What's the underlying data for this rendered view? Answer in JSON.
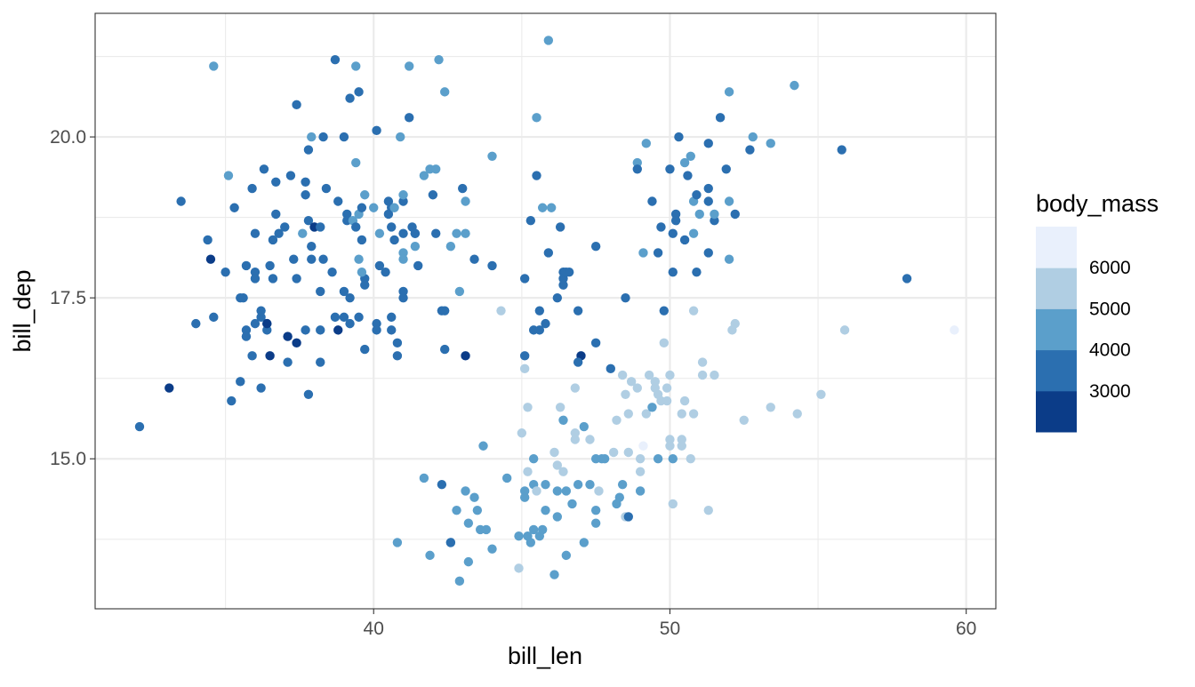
{
  "chart_data": {
    "type": "scatter",
    "title": "",
    "xlabel": "bill_len",
    "ylabel": "bill_dep",
    "xlim": [
      30.6,
      61.0
    ],
    "ylim": [
      12.67,
      21.92
    ],
    "x_ticks": [
      40,
      50,
      60
    ],
    "x_tick_labels": [
      "40",
      "50",
      "60"
    ],
    "y_ticks": [
      15,
      17.5,
      20
    ],
    "y_tick_labels": [
      "15.0",
      "17.5",
      "20.0"
    ],
    "grid": true,
    "theme": "bw",
    "legend": {
      "title": "body_mass",
      "placement": "right",
      "type": "binned",
      "breaks": [
        3000,
        4000,
        5000,
        6000
      ],
      "break_labels": [
        "3000",
        "4000",
        "5000",
        "6000"
      ],
      "bin_colors": [
        "#0B3C88",
        "#2B6FB0",
        "#5B9FCB",
        "#B0CEE3",
        "#E9F0FC"
      ]
    },
    "point_fields": [
      "bill_len",
      "bill_dep",
      "body_mass"
    ],
    "points": [
      [
        32.1,
        15.5,
        3500
      ],
      [
        33.1,
        16.1,
        2900
      ],
      [
        33.5,
        19.0,
        3500
      ],
      [
        34.0,
        17.1,
        3500
      ],
      [
        34.4,
        18.4,
        3500
      ],
      [
        34.5,
        18.1,
        2900
      ],
      [
        34.6,
        21.1,
        4500
      ],
      [
        34.6,
        17.2,
        3500
      ],
      [
        35.0,
        17.9,
        3500
      ],
      [
        35.1,
        19.4,
        4500
      ],
      [
        35.2,
        15.9,
        3500
      ],
      [
        35.3,
        18.9,
        3500
      ],
      [
        35.5,
        16.2,
        3500
      ],
      [
        35.5,
        17.5,
        3500
      ],
      [
        35.6,
        17.5,
        3500
      ],
      [
        35.7,
        18.0,
        3500
      ],
      [
        35.7,
        17.0,
        3500
      ],
      [
        35.7,
        16.9,
        3500
      ],
      [
        35.9,
        19.2,
        3500
      ],
      [
        35.9,
        16.6,
        3500
      ],
      [
        36.0,
        17.1,
        3500
      ],
      [
        36.0,
        17.9,
        3500
      ],
      [
        36.0,
        18.5,
        3500
      ],
      [
        36.0,
        17.8,
        3500
      ],
      [
        36.2,
        17.2,
        3500
      ],
      [
        36.2,
        17.3,
        3500
      ],
      [
        36.2,
        16.1,
        3500
      ],
      [
        36.3,
        19.5,
        3500
      ],
      [
        36.4,
        17.1,
        3500
      ],
      [
        36.4,
        17.0,
        3500
      ],
      [
        36.4,
        17.1,
        2900
      ],
      [
        36.5,
        18.0,
        3500
      ],
      [
        36.5,
        16.6,
        2900
      ],
      [
        36.6,
        18.4,
        3500
      ],
      [
        36.6,
        17.8,
        3500
      ],
      [
        36.7,
        19.3,
        3500
      ],
      [
        36.7,
        18.8,
        3500
      ],
      [
        36.8,
        18.5,
        3500
      ],
      [
        37.0,
        18.6,
        3500
      ],
      [
        37.1,
        16.9,
        2900
      ],
      [
        37.1,
        16.5,
        3500
      ],
      [
        37.2,
        19.4,
        3500
      ],
      [
        37.3,
        18.1,
        3500
      ],
      [
        37.4,
        20.5,
        3500
      ],
      [
        37.4,
        17.8,
        3500
      ],
      [
        37.4,
        16.8,
        2900
      ],
      [
        37.6,
        18.5,
        4500
      ],
      [
        37.7,
        19.3,
        3500
      ],
      [
        37.7,
        19.1,
        3500
      ],
      [
        37.7,
        17.0,
        3500
      ],
      [
        37.8,
        16.0,
        3500
      ],
      [
        37.8,
        19.8,
        3500
      ],
      [
        37.8,
        18.7,
        3500
      ],
      [
        37.9,
        20.0,
        4500
      ],
      [
        37.9,
        18.3,
        3500
      ],
      [
        37.9,
        18.1,
        3500
      ],
      [
        38.0,
        18.6,
        3500
      ],
      [
        38.0,
        18.6,
        2900
      ],
      [
        38.2,
        18.6,
        3500
      ],
      [
        38.2,
        17.6,
        3500
      ],
      [
        38.2,
        17.0,
        3500
      ],
      [
        38.2,
        16.5,
        3500
      ],
      [
        38.3,
        18.1,
        3500
      ],
      [
        38.3,
        20.0,
        3500
      ],
      [
        38.4,
        19.2,
        3500
      ],
      [
        38.6,
        17.9,
        3500
      ],
      [
        38.7,
        21.2,
        3500
      ],
      [
        38.7,
        17.2,
        3500
      ],
      [
        38.8,
        17.0,
        2900
      ],
      [
        38.8,
        19.0,
        3500
      ],
      [
        39.0,
        20.0,
        3500
      ],
      [
        39.0,
        17.6,
        3500
      ],
      [
        39.0,
        17.2,
        3500
      ],
      [
        39.1,
        18.8,
        3500
      ],
      [
        39.1,
        18.7,
        3500
      ],
      [
        39.2,
        17.1,
        3500
      ],
      [
        39.2,
        17.5,
        3500
      ],
      [
        39.3,
        18.7,
        4500
      ],
      [
        39.4,
        21.1,
        4500
      ],
      [
        39.4,
        19.6,
        4500
      ],
      [
        39.4,
        18.6,
        3500
      ],
      [
        39.2,
        20.6,
        3500
      ],
      [
        39.7,
        17.8,
        3500
      ],
      [
        39.7,
        16.7,
        3500
      ],
      [
        39.7,
        17.7,
        3500
      ],
      [
        39.5,
        20.7,
        3500
      ],
      [
        39.5,
        18.8,
        4500
      ],
      [
        39.5,
        18.1,
        4500
      ],
      [
        39.6,
        17.9,
        4500
      ],
      [
        39.5,
        17.2,
        3500
      ],
      [
        39.6,
        18.9,
        3500
      ],
      [
        39.6,
        18.4,
        3500
      ],
      [
        39.7,
        19.1,
        4500
      ],
      [
        40.0,
        18.9,
        4500
      ],
      [
        40.1,
        17.1,
        3500
      ],
      [
        40.1,
        17.0,
        3500
      ],
      [
        40.1,
        20.1,
        3500
      ],
      [
        40.2,
        18.0,
        3500
      ],
      [
        40.2,
        18.5,
        4500
      ],
      [
        40.4,
        17.9,
        3500
      ],
      [
        40.5,
        19.0,
        3500
      ],
      [
        40.5,
        18.8,
        3500
      ],
      [
        40.6,
        17.2,
        3500
      ],
      [
        40.6,
        17.0,
        3500
      ],
      [
        40.6,
        18.9,
        3500
      ],
      [
        40.6,
        18.6,
        3500
      ],
      [
        40.7,
        18.4,
        3500
      ],
      [
        40.7,
        18.9,
        4500
      ],
      [
        40.8,
        16.8,
        3500
      ],
      [
        40.8,
        16.6,
        3500
      ],
      [
        40.9,
        20.0,
        4500
      ],
      [
        41.0,
        19.0,
        3500
      ],
      [
        41.0,
        18.5,
        3500
      ],
      [
        41.0,
        19.1,
        4500
      ],
      [
        41.0,
        18.2,
        4500
      ],
      [
        41.0,
        18.1,
        4500
      ],
      [
        41.0,
        17.6,
        3500
      ],
      [
        41.0,
        17.5,
        3500
      ],
      [
        41.2,
        20.3,
        3500
      ],
      [
        41.2,
        21.1,
        4500
      ],
      [
        41.3,
        18.6,
        3500
      ],
      [
        41.4,
        18.5,
        3500
      ],
      [
        41.4,
        18.3,
        4500
      ],
      [
        41.4,
        18.5,
        3500
      ],
      [
        41.5,
        18.0,
        3500
      ],
      [
        41.7,
        14.7,
        4500
      ],
      [
        41.7,
        19.4,
        4500
      ],
      [
        41.9,
        19.5,
        4500
      ],
      [
        42.0,
        19.1,
        3500
      ],
      [
        42.1,
        19.5,
        4500
      ],
      [
        42.1,
        18.5,
        3500
      ],
      [
        42.4,
        20.7,
        4500
      ],
      [
        42.2,
        21.2,
        4500
      ],
      [
        42.3,
        17.3,
        3500
      ],
      [
        42.4,
        17.3,
        3500
      ],
      [
        42.4,
        16.7,
        3500
      ],
      [
        42.6,
        18.3,
        4500
      ],
      [
        42.8,
        18.5,
        4500
      ],
      [
        42.9,
        17.6,
        4500
      ],
      [
        43.0,
        19.2,
        3500
      ],
      [
        43.1,
        19.0,
        4500
      ],
      [
        43.1,
        18.5,
        4500
      ],
      [
        43.1,
        16.6,
        2900
      ],
      [
        43.4,
        18.1,
        3500
      ],
      [
        44.0,
        18.0,
        3500
      ],
      [
        44.0,
        19.7,
        4500
      ],
      [
        44.3,
        17.3,
        5500
      ],
      [
        45.5,
        20.3,
        4500
      ],
      [
        45.5,
        19.4,
        3500
      ],
      [
        45.3,
        18.7,
        3500
      ],
      [
        45.7,
        18.9,
        4500
      ],
      [
        46.0,
        18.9,
        4500
      ],
      [
        46.3,
        18.6,
        3500
      ],
      [
        45.9,
        18.2,
        3500
      ],
      [
        45.1,
        17.8,
        3500
      ],
      [
        45.6,
        17.3,
        3500
      ],
      [
        46.2,
        17.5,
        3500
      ],
      [
        46.4,
        17.8,
        3500
      ],
      [
        46.4,
        17.9,
        3500
      ],
      [
        46.5,
        17.9,
        3500
      ],
      [
        46.6,
        17.9,
        3500
      ],
      [
        46.4,
        17.7,
        3500
      ],
      [
        46.9,
        17.3,
        3500
      ],
      [
        47.5,
        18.3,
        3500
      ],
      [
        45.8,
        17.1,
        3500
      ],
      [
        45.4,
        17.0,
        3500
      ],
      [
        45.6,
        17.0,
        3500
      ],
      [
        45.1,
        16.6,
        3500
      ],
      [
        45.1,
        16.4,
        5500
      ],
      [
        47.0,
        16.6,
        2900
      ],
      [
        46.9,
        16.5,
        3500
      ],
      [
        47.5,
        16.8,
        3500
      ],
      [
        48.5,
        17.5,
        3500
      ],
      [
        45.9,
        21.5,
        4500
      ],
      [
        48.0,
        16.4,
        3500
      ],
      [
        43.7,
        15.2,
        4500
      ],
      [
        40.8,
        13.7,
        4500
      ],
      [
        41.9,
        13.5,
        4500
      ],
      [
        42.3,
        14.6,
        3500
      ],
      [
        42.6,
        13.7,
        4500
      ],
      [
        42.6,
        13.7,
        3500
      ],
      [
        42.8,
        14.2,
        4500
      ],
      [
        42.9,
        13.1,
        4500
      ],
      [
        43.1,
        14.5,
        4500
      ],
      [
        43.2,
        14.0,
        4500
      ],
      [
        43.2,
        13.4,
        4500
      ],
      [
        43.4,
        14.4,
        4500
      ],
      [
        43.5,
        14.2,
        4500
      ],
      [
        43.6,
        13.9,
        4500
      ],
      [
        43.8,
        13.9,
        4500
      ],
      [
        44.0,
        13.6,
        4500
      ],
      [
        44.5,
        14.7,
        4500
      ],
      [
        44.9,
        13.8,
        4500
      ],
      [
        44.9,
        13.3,
        5500
      ],
      [
        45.0,
        15.4,
        5500
      ],
      [
        45.1,
        14.5,
        4500
      ],
      [
        45.1,
        14.4,
        4500
      ],
      [
        45.2,
        14.8,
        5500
      ],
      [
        45.2,
        13.8,
        4500
      ],
      [
        45.2,
        15.8,
        5500
      ],
      [
        45.3,
        13.7,
        4500
      ],
      [
        45.4,
        14.6,
        4500
      ],
      [
        45.4,
        15.0,
        4500
      ],
      [
        45.4,
        13.9,
        4500
      ],
      [
        45.5,
        14.5,
        5500
      ],
      [
        45.6,
        13.8,
        4500
      ],
      [
        45.7,
        13.9,
        4500
      ],
      [
        45.8,
        14.6,
        4500
      ],
      [
        45.8,
        14.2,
        4500
      ],
      [
        46.1,
        13.2,
        4500
      ],
      [
        46.1,
        15.1,
        5500
      ],
      [
        46.2,
        14.9,
        5500
      ],
      [
        46.2,
        14.1,
        4500
      ],
      [
        46.2,
        14.5,
        4500
      ],
      [
        46.3,
        15.8,
        5500
      ],
      [
        46.4,
        15.6,
        4500
      ],
      [
        46.4,
        14.8,
        5500
      ],
      [
        46.5,
        13.5,
        4500
      ],
      [
        46.5,
        14.5,
        4500
      ],
      [
        46.7,
        14.3,
        4500
      ],
      [
        46.8,
        15.4,
        5500
      ],
      [
        46.8,
        16.1,
        5500
      ],
      [
        46.8,
        15.3,
        5500
      ],
      [
        46.9,
        14.6,
        4500
      ],
      [
        47.1,
        13.7,
        4500
      ],
      [
        47.1,
        15.5,
        4500
      ],
      [
        47.3,
        15.3,
        5500
      ],
      [
        47.3,
        14.6,
        4500
      ],
      [
        47.5,
        14.2,
        4500
      ],
      [
        47.5,
        14.0,
        4500
      ],
      [
        47.5,
        15.0,
        4500
      ],
      [
        47.6,
        14.5,
        5500
      ],
      [
        47.7,
        15.0,
        4500
      ],
      [
        47.8,
        15.0,
        4500
      ],
      [
        48.1,
        15.1,
        5500
      ],
      [
        48.2,
        15.6,
        5500
      ],
      [
        48.2,
        14.3,
        4500
      ],
      [
        48.3,
        14.4,
        4500
      ],
      [
        48.4,
        16.3,
        5500
      ],
      [
        48.4,
        14.6,
        4500
      ],
      [
        48.5,
        14.1,
        5500
      ],
      [
        48.6,
        14.1,
        3500
      ],
      [
        48.5,
        16.0,
        5500
      ],
      [
        48.6,
        15.7,
        5500
      ],
      [
        48.6,
        15.1,
        5500
      ],
      [
        48.7,
        16.2,
        5500
      ],
      [
        48.9,
        16.1,
        5500
      ],
      [
        49.0,
        14.8,
        5500
      ],
      [
        49.0,
        14.5,
        4500
      ],
      [
        49.0,
        15.0,
        5500
      ],
      [
        49.1,
        15.2,
        6200
      ],
      [
        49.2,
        15.7,
        5500
      ],
      [
        49.3,
        16.3,
        5500
      ],
      [
        49.4,
        15.8,
        4500
      ],
      [
        49.5,
        16.2,
        5500
      ],
      [
        49.5,
        16.1,
        5500
      ],
      [
        49.6,
        16.0,
        5500
      ],
      [
        49.6,
        15.0,
        4500
      ],
      [
        49.7,
        15.9,
        5500
      ],
      [
        49.9,
        16.1,
        5500
      ],
      [
        50.0,
        16.3,
        5500
      ],
      [
        50.0,
        15.3,
        5500
      ],
      [
        50.0,
        15.2,
        5500
      ],
      [
        49.9,
        15.9,
        5500
      ],
      [
        49.8,
        16.8,
        5500
      ],
      [
        50.1,
        15.0,
        4500
      ],
      [
        50.1,
        14.3,
        5500
      ],
      [
        50.4,
        15.7,
        5500
      ],
      [
        50.4,
        15.3,
        5500
      ],
      [
        50.5,
        15.9,
        5500
      ],
      [
        50.4,
        15.2,
        5500
      ],
      [
        50.7,
        15.0,
        5500
      ],
      [
        50.8,
        15.7,
        5500
      ],
      [
        50.8,
        17.3,
        5500
      ],
      [
        51.1,
        16.5,
        5500
      ],
      [
        51.1,
        16.3,
        5500
      ],
      [
        51.3,
        14.2,
        5500
      ],
      [
        51.5,
        16.3,
        5500
      ],
      [
        52.1,
        17.0,
        5500
      ],
      [
        52.2,
        17.1,
        5500
      ],
      [
        52.5,
        15.6,
        5500
      ],
      [
        53.4,
        15.8,
        5500
      ],
      [
        54.3,
        15.7,
        5500
      ],
      [
        55.1,
        16.0,
        5500
      ],
      [
        55.9,
        17.0,
        5500
      ],
      [
        59.6,
        17.0,
        6200
      ],
      [
        48.9,
        19.6,
        4500
      ],
      [
        48.9,
        19.5,
        3500
      ],
      [
        49.2,
        19.9,
        4500
      ],
      [
        49.4,
        19.0,
        3500
      ],
      [
        49.1,
        18.2,
        4500
      ],
      [
        49.6,
        18.2,
        3500
      ],
      [
        49.7,
        18.6,
        3500
      ],
      [
        50.0,
        19.5,
        3500
      ],
      [
        50.2,
        18.8,
        3500
      ],
      [
        50.2,
        18.7,
        3500
      ],
      [
        50.1,
        18.5,
        3500
      ],
      [
        50.1,
        17.9,
        3500
      ],
      [
        49.8,
        17.3,
        3500
      ],
      [
        50.3,
        20.0,
        3500
      ],
      [
        50.5,
        19.6,
        4500
      ],
      [
        50.6,
        19.4,
        3500
      ],
      [
        50.7,
        19.7,
        4500
      ],
      [
        50.5,
        18.4,
        3500
      ],
      [
        50.8,
        19.0,
        4500
      ],
      [
        50.8,
        18.5,
        4500
      ],
      [
        50.9,
        19.1,
        3500
      ],
      [
        50.9,
        17.9,
        3500
      ],
      [
        51.0,
        18.8,
        4500
      ],
      [
        51.3,
        19.2,
        3500
      ],
      [
        51.3,
        19.9,
        3500
      ],
      [
        51.3,
        19.0,
        3500
      ],
      [
        51.3,
        18.2,
        3500
      ],
      [
        51.5,
        18.7,
        3500
      ],
      [
        51.5,
        18.8,
        4500
      ],
      [
        51.7,
        20.3,
        3500
      ],
      [
        51.9,
        19.5,
        3500
      ],
      [
        52.0,
        19.0,
        4500
      ],
      [
        52.0,
        18.1,
        4500
      ],
      [
        52.0,
        20.7,
        4500
      ],
      [
        52.2,
        18.8,
        3500
      ],
      [
        52.7,
        19.8,
        3500
      ],
      [
        52.8,
        20.0,
        4500
      ],
      [
        53.4,
        19.9,
        4500
      ],
      [
        54.2,
        20.8,
        4500
      ],
      [
        55.8,
        19.8,
        3500
      ],
      [
        58.0,
        17.8,
        3500
      ]
    ]
  }
}
